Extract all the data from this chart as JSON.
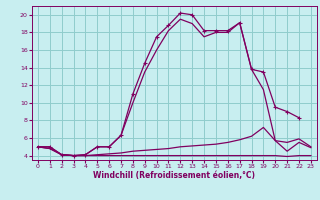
{
  "xlabel": "Windchill (Refroidissement éolien,°C)",
  "xlim": [
    -0.5,
    23.5
  ],
  "ylim": [
    3.5,
    21.0
  ],
  "xticks": [
    0,
    1,
    2,
    3,
    4,
    5,
    6,
    7,
    8,
    9,
    10,
    11,
    12,
    13,
    14,
    15,
    16,
    17,
    18,
    19,
    20,
    21,
    22,
    23
  ],
  "yticks": [
    4,
    6,
    8,
    10,
    12,
    14,
    16,
    18,
    20
  ],
  "bg_color": "#c8eef0",
  "line_color": "#800060",
  "grid_color": "#90cccc",
  "hours": [
    0,
    1,
    2,
    3,
    4,
    5,
    6,
    7,
    8,
    9,
    10,
    11,
    12,
    13,
    14,
    15,
    16,
    17,
    18,
    19,
    20,
    21,
    22,
    23
  ],
  "curve1": [
    5.0,
    5.0,
    4.1,
    4.0,
    4.1,
    5.0,
    5.0,
    6.3,
    11.0,
    14.5,
    17.5,
    18.8,
    20.2,
    20.0,
    18.2,
    18.2,
    18.2,
    19.1,
    13.8,
    13.5,
    9.5,
    9.0,
    8.3,
    null
  ],
  "curve2": [
    5.0,
    5.0,
    4.1,
    4.0,
    4.1,
    5.0,
    5.0,
    6.3,
    10.0,
    13.5,
    16.0,
    18.2,
    19.5,
    19.0,
    17.5,
    18.0,
    18.0,
    19.1,
    13.8,
    11.5,
    5.7,
    5.5,
    5.9,
    5.0
  ],
  "curve3": [
    5.0,
    4.8,
    4.1,
    4.0,
    4.0,
    4.1,
    4.2,
    4.3,
    4.5,
    4.6,
    4.7,
    4.8,
    5.0,
    5.1,
    5.2,
    5.3,
    5.5,
    5.8,
    6.2,
    7.2,
    5.7,
    4.5,
    5.5,
    4.9
  ],
  "curve4": [
    5.0,
    4.8,
    4.1,
    4.0,
    4.0,
    4.0,
    4.0,
    4.0,
    4.0,
    4.0,
    4.0,
    4.0,
    4.0,
    4.0,
    4.0,
    4.0,
    4.0,
    4.0,
    4.0,
    4.0,
    4.0,
    3.9,
    4.0,
    4.0
  ]
}
